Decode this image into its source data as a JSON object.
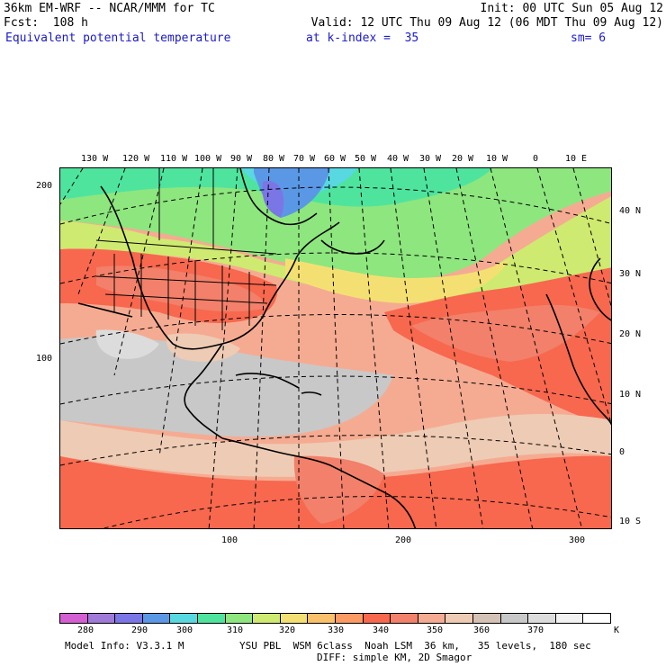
{
  "header": {
    "model_line": "36km EM-WRF -- NCAR/MMM for TC",
    "init": "Init: 00 UTC Sun 05 Aug 12",
    "fcst": "Fcst:  108 h",
    "valid": "Valid: 12 UTC Thu 09 Aug 12 (06 MDT Thu 09 Aug 12)",
    "field": "Equivalent potential temperature",
    "kindex": "at k-index =  35",
    "sm": "sm= 6"
  },
  "axes": {
    "lon_labels": [
      "130 W",
      "120 W",
      "110 W",
      "100 W",
      "90 W",
      "80 W",
      "70 W",
      "60 W",
      "50 W",
      "40 W",
      "30 W",
      "20 W",
      "10 W",
      "0",
      "10 E"
    ],
    "lat_labels": [
      "40 N",
      "30 N",
      "20 N",
      "10 N",
      "0",
      "10 S"
    ],
    "left_ticks": [
      "200",
      "100"
    ],
    "bottom_ticks": [
      "100",
      "200",
      "300"
    ]
  },
  "colorbar": {
    "labels": [
      "280",
      "290",
      "300",
      "310",
      "320",
      "330",
      "340",
      "350",
      "360",
      "370"
    ],
    "unit": "K",
    "colors": [
      "#d35fd3",
      "#a07ad8",
      "#7a76e6",
      "#5a98e6",
      "#58d8e0",
      "#4ee49e",
      "#8ee67e",
      "#cfea70",
      "#f4e072",
      "#fbc06a",
      "#fb9a62",
      "#f7684e",
      "#f2806a",
      "#f5ab92",
      "#eecbb4",
      "#d4c2b6",
      "#c8c8c8",
      "#dcdcdc",
      "#f2f2f2",
      "#ffffff"
    ]
  },
  "footer": {
    "model_info": "Model Info: V3.3.1 M",
    "physics": "YSU PBL  WSM 6class  Noah LSM  36 km,   35 levels,  180 sec",
    "diff": "DIFF: simple KM, 2D Smagor"
  }
}
